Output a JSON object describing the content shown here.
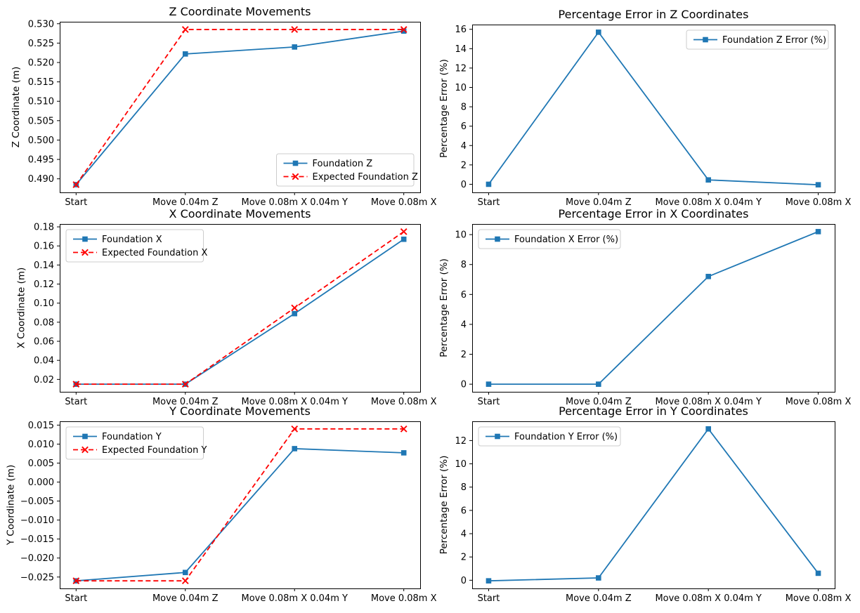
{
  "chart_data": [
    {
      "type": "line",
      "title": "Z Coordinate Movements",
      "xlabel": "",
      "ylabel": "Z Coordinate (m)",
      "categories": [
        "Start",
        "Move 0.04m Z",
        "Move 0.08m X 0.04m Y",
        "Move 0.08m X"
      ],
      "series": [
        {
          "name": "Foundation Z",
          "color": "#1f77b4",
          "marker": "square",
          "linestyle": "solid",
          "values": [
            0.4885,
            0.5222,
            0.524,
            0.5281
          ]
        },
        {
          "name": "Expected Foundation Z",
          "color": "#ff0000",
          "marker": "x",
          "linestyle": "dashed",
          "values": [
            0.4885,
            0.5285,
            0.5285,
            0.5285
          ]
        }
      ],
      "ylim": [
        0.4865,
        0.5305
      ],
      "yticks": {
        "values": [
          0.49,
          0.495,
          0.5,
          0.505,
          0.51,
          0.515,
          0.52,
          0.525,
          0.53
        ],
        "labels": [
          "0.490",
          "0.495",
          "0.500",
          "0.505",
          "0.510",
          "0.515",
          "0.520",
          "0.525",
          "0.530"
        ]
      },
      "legend": {
        "position": "lower-right"
      },
      "grid": false
    },
    {
      "type": "line",
      "title": "Percentage Error in Z Coordinates",
      "xlabel": "",
      "ylabel": "Percentage Error (%)",
      "categories": [
        "Start",
        "Move 0.04m Z",
        "Move 0.08m X 0.04m Y",
        "Move 0.08m X"
      ],
      "series": [
        {
          "name": "Foundation Z Error (%)",
          "color": "#1f77b4",
          "marker": "square",
          "linestyle": "solid",
          "values": [
            0.0,
            15.7,
            0.45,
            -0.05
          ]
        }
      ],
      "ylim": [
        -0.8375,
        16.4875
      ],
      "yticks": {
        "values": [
          0,
          2,
          4,
          6,
          8,
          10,
          12,
          14,
          16
        ],
        "labels": [
          "0",
          "2",
          "4",
          "6",
          "8",
          "10",
          "12",
          "14",
          "16"
        ]
      },
      "legend": {
        "position": "upper-right"
      },
      "grid": false
    },
    {
      "type": "line",
      "title": "X Coordinate Movements",
      "xlabel": "",
      "ylabel": "X Coordinate (m)",
      "categories": [
        "Start",
        "Move 0.04m Z",
        "Move 0.08m X 0.04m Y",
        "Move 0.08m X"
      ],
      "series": [
        {
          "name": "Foundation X",
          "color": "#1f77b4",
          "marker": "square",
          "linestyle": "solid",
          "values": [
            0.015,
            0.015,
            0.089,
            0.167
          ]
        },
        {
          "name": "Expected Foundation X",
          "color": "#ff0000",
          "marker": "x",
          "linestyle": "dashed",
          "values": [
            0.015,
            0.015,
            0.095,
            0.175
          ]
        }
      ],
      "ylim": [
        0.007,
        0.183
      ],
      "yticks": {
        "values": [
          0.02,
          0.04,
          0.06,
          0.08,
          0.1,
          0.12,
          0.14,
          0.16,
          0.18
        ],
        "labels": [
          "0.02",
          "0.04",
          "0.06",
          "0.08",
          "0.10",
          "0.12",
          "0.14",
          "0.16",
          "0.18"
        ]
      },
      "legend": {
        "position": "upper-left"
      },
      "grid": false
    },
    {
      "type": "line",
      "title": "Percentage Error in X Coordinates",
      "xlabel": "",
      "ylabel": "Percentage Error (%)",
      "categories": [
        "Start",
        "Move 0.04m Z",
        "Move 0.08m X 0.04m Y",
        "Move 0.08m X"
      ],
      "series": [
        {
          "name": "Foundation X Error (%)",
          "color": "#1f77b4",
          "marker": "square",
          "linestyle": "solid",
          "values": [
            0.0,
            0.0,
            7.2,
            10.2
          ]
        }
      ],
      "ylim": [
        -0.51,
        10.71
      ],
      "yticks": {
        "values": [
          0,
          2,
          4,
          6,
          8,
          10
        ],
        "labels": [
          "0",
          "2",
          "4",
          "6",
          "8",
          "10"
        ]
      },
      "legend": {
        "position": "upper-left"
      },
      "grid": false
    },
    {
      "type": "line",
      "title": "Y Coordinate Movements",
      "xlabel": "",
      "ylabel": "Y Coordinate (m)",
      "categories": [
        "Start",
        "Move 0.04m Z",
        "Move 0.08m X 0.04m Y",
        "Move 0.08m X"
      ],
      "series": [
        {
          "name": "Foundation Y",
          "color": "#1f77b4",
          "marker": "square",
          "linestyle": "solid",
          "values": [
            -0.026,
            -0.0238,
            0.0088,
            0.0077
          ]
        },
        {
          "name": "Expected Foundation Y",
          "color": "#ff0000",
          "marker": "x",
          "linestyle": "dashed",
          "values": [
            -0.026,
            -0.026,
            0.014,
            0.014
          ]
        }
      ],
      "ylim": [
        -0.028,
        0.016
      ],
      "yticks": {
        "values": [
          -0.025,
          -0.02,
          -0.015,
          -0.01,
          -0.005,
          0.0,
          0.005,
          0.01,
          0.015
        ],
        "labels": [
          "−0.025",
          "−0.020",
          "−0.015",
          "−0.010",
          "−0.005",
          "0.000",
          "0.005",
          "0.010",
          "0.015"
        ]
      },
      "legend": {
        "position": "upper-left"
      },
      "grid": false
    },
    {
      "type": "line",
      "title": "Percentage Error in Y Coordinates",
      "xlabel": "",
      "ylabel": "Percentage Error (%)",
      "categories": [
        "Start",
        "Move 0.04m Z",
        "Move 0.08m X 0.04m Y",
        "Move 0.08m X"
      ],
      "series": [
        {
          "name": "Foundation Y Error (%)",
          "color": "#1f77b4",
          "marker": "square",
          "linestyle": "solid",
          "values": [
            -0.05,
            0.2,
            13.0,
            0.6
          ]
        }
      ],
      "ylim": [
        -0.7025,
        13.6525
      ],
      "yticks": {
        "values": [
          0,
          2,
          4,
          6,
          8,
          10,
          12
        ],
        "labels": [
          "0",
          "2",
          "4",
          "6",
          "8",
          "10",
          "12"
        ]
      },
      "legend": {
        "position": "upper-left"
      },
      "grid": false
    }
  ],
  "colors": {
    "series_blue": "#1f77b4",
    "series_red": "#ff0000",
    "axis": "#000000",
    "legend_border": "#cccccc",
    "background": "#ffffff"
  }
}
